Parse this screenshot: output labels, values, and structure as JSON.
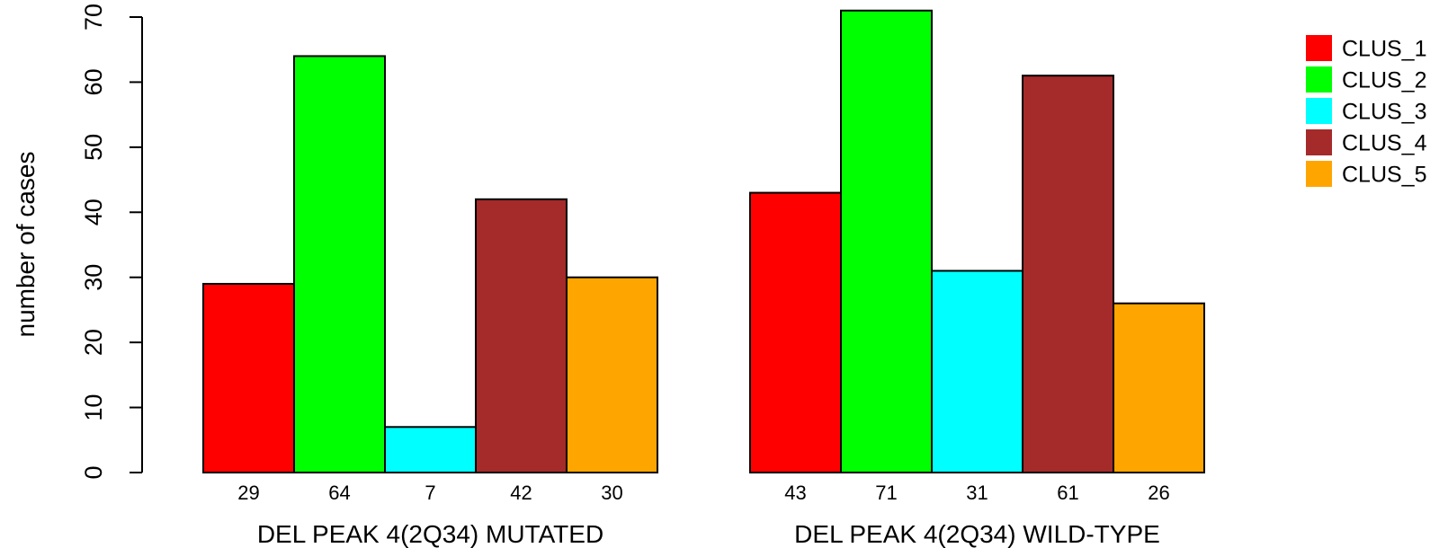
{
  "chart_data": {
    "type": "bar",
    "title": "",
    "ylabel": "number of cases",
    "ylim": [
      0,
      70
    ],
    "yticks": [
      0,
      10,
      20,
      30,
      40,
      50,
      60,
      70
    ],
    "groups": [
      {
        "label": "DEL PEAK  4(2Q34) MUTATED",
        "values": [
          29,
          64,
          7,
          42,
          30
        ]
      },
      {
        "label": "DEL PEAK  4(2Q34) WILD-TYPE",
        "values": [
          43,
          71,
          31,
          61,
          26
        ]
      }
    ],
    "series": [
      {
        "name": "CLUS_1",
        "color": "#ff0000"
      },
      {
        "name": "CLUS_2",
        "color": "#00ff00"
      },
      {
        "name": "CLUS_3",
        "color": "#00ffff"
      },
      {
        "name": "CLUS_4",
        "color": "#a52a2a"
      },
      {
        "name": "CLUS_5",
        "color": "#ffa500"
      }
    ],
    "legend_position": "top-right",
    "grid": false
  }
}
